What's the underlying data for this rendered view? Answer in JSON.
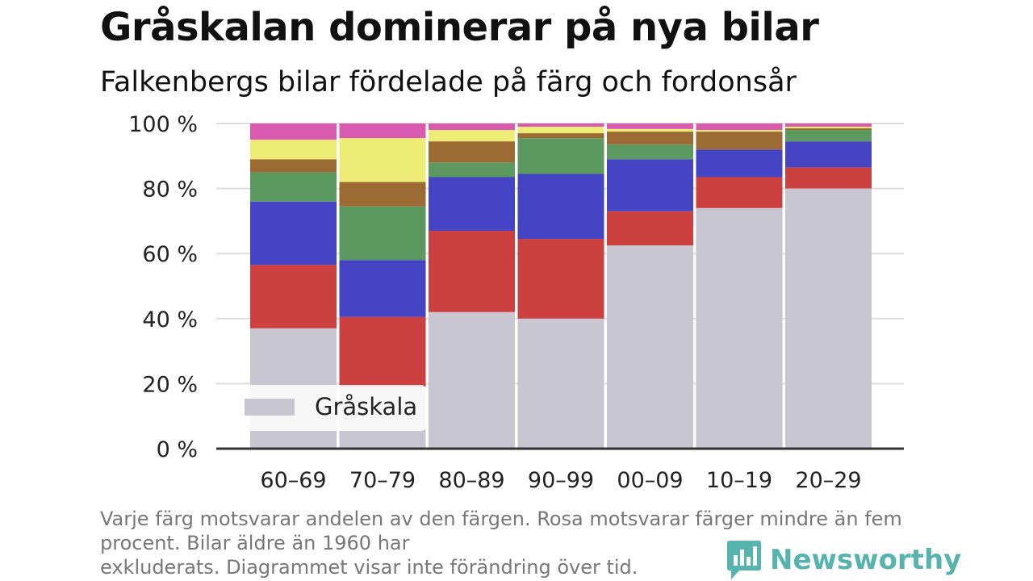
{
  "header": {
    "title": "Gråskalan dominerar på nya bilar",
    "subtitle": "Falkenbergs bilar fördelade på färg och fordonsår"
  },
  "footnote": {
    "line1": "Varje färg motsvarar andelen av den färgen. Rosa motsvarar färger mindre än fem procent. Bilar äldre än 1960 har",
    "line2": "exkluderats. Diagrammet visar inte förändring över tid."
  },
  "brand": {
    "name": "Newsworthy",
    "icon": "bar-chart-speech-bubble-icon",
    "color": "#56b3ad"
  },
  "chart_data": {
    "type": "bar",
    "stacked": true,
    "categories": [
      "60–69",
      "70–79",
      "80–89",
      "90–99",
      "00–09",
      "10–19",
      "20–29"
    ],
    "ylim": [
      0,
      100
    ],
    "yticks": [
      0,
      20,
      40,
      60,
      80,
      100
    ],
    "ytick_labels": [
      "0 %",
      "20 %",
      "40 %",
      "60 %",
      "80 %",
      "100 %"
    ],
    "grid": true,
    "legend": {
      "placement": "bottom-left",
      "entries": [
        "Gråskala"
      ]
    },
    "series": [
      {
        "name": "Gråskala",
        "color": "#c8c6d0",
        "values": [
          37,
          19,
          42,
          40,
          62.5,
          74,
          80
        ]
      },
      {
        "color": "#cc4040",
        "values": [
          19.5,
          21.5,
          25,
          24.5,
          10.5,
          9.5,
          6.5
        ]
      },
      {
        "color": "#4444c4",
        "values": [
          19.5,
          17.5,
          16.5,
          20,
          16,
          8.5,
          8
        ]
      },
      {
        "color": "#5b9960",
        "values": [
          9,
          16.5,
          4.5,
          11,
          4.5,
          0,
          3.5
        ]
      },
      {
        "color": "#9c6b34",
        "values": [
          4,
          7.5,
          6.5,
          1.5,
          4,
          5.5,
          0.5
        ]
      },
      {
        "color": "#eded75",
        "values": [
          6,
          13.5,
          3.5,
          2,
          0.8,
          0.5,
          0.5
        ]
      },
      {
        "color": "#d95bb0",
        "values": [
          5,
          4.5,
          2,
          1,
          1.7,
          2,
          1
        ]
      }
    ]
  }
}
